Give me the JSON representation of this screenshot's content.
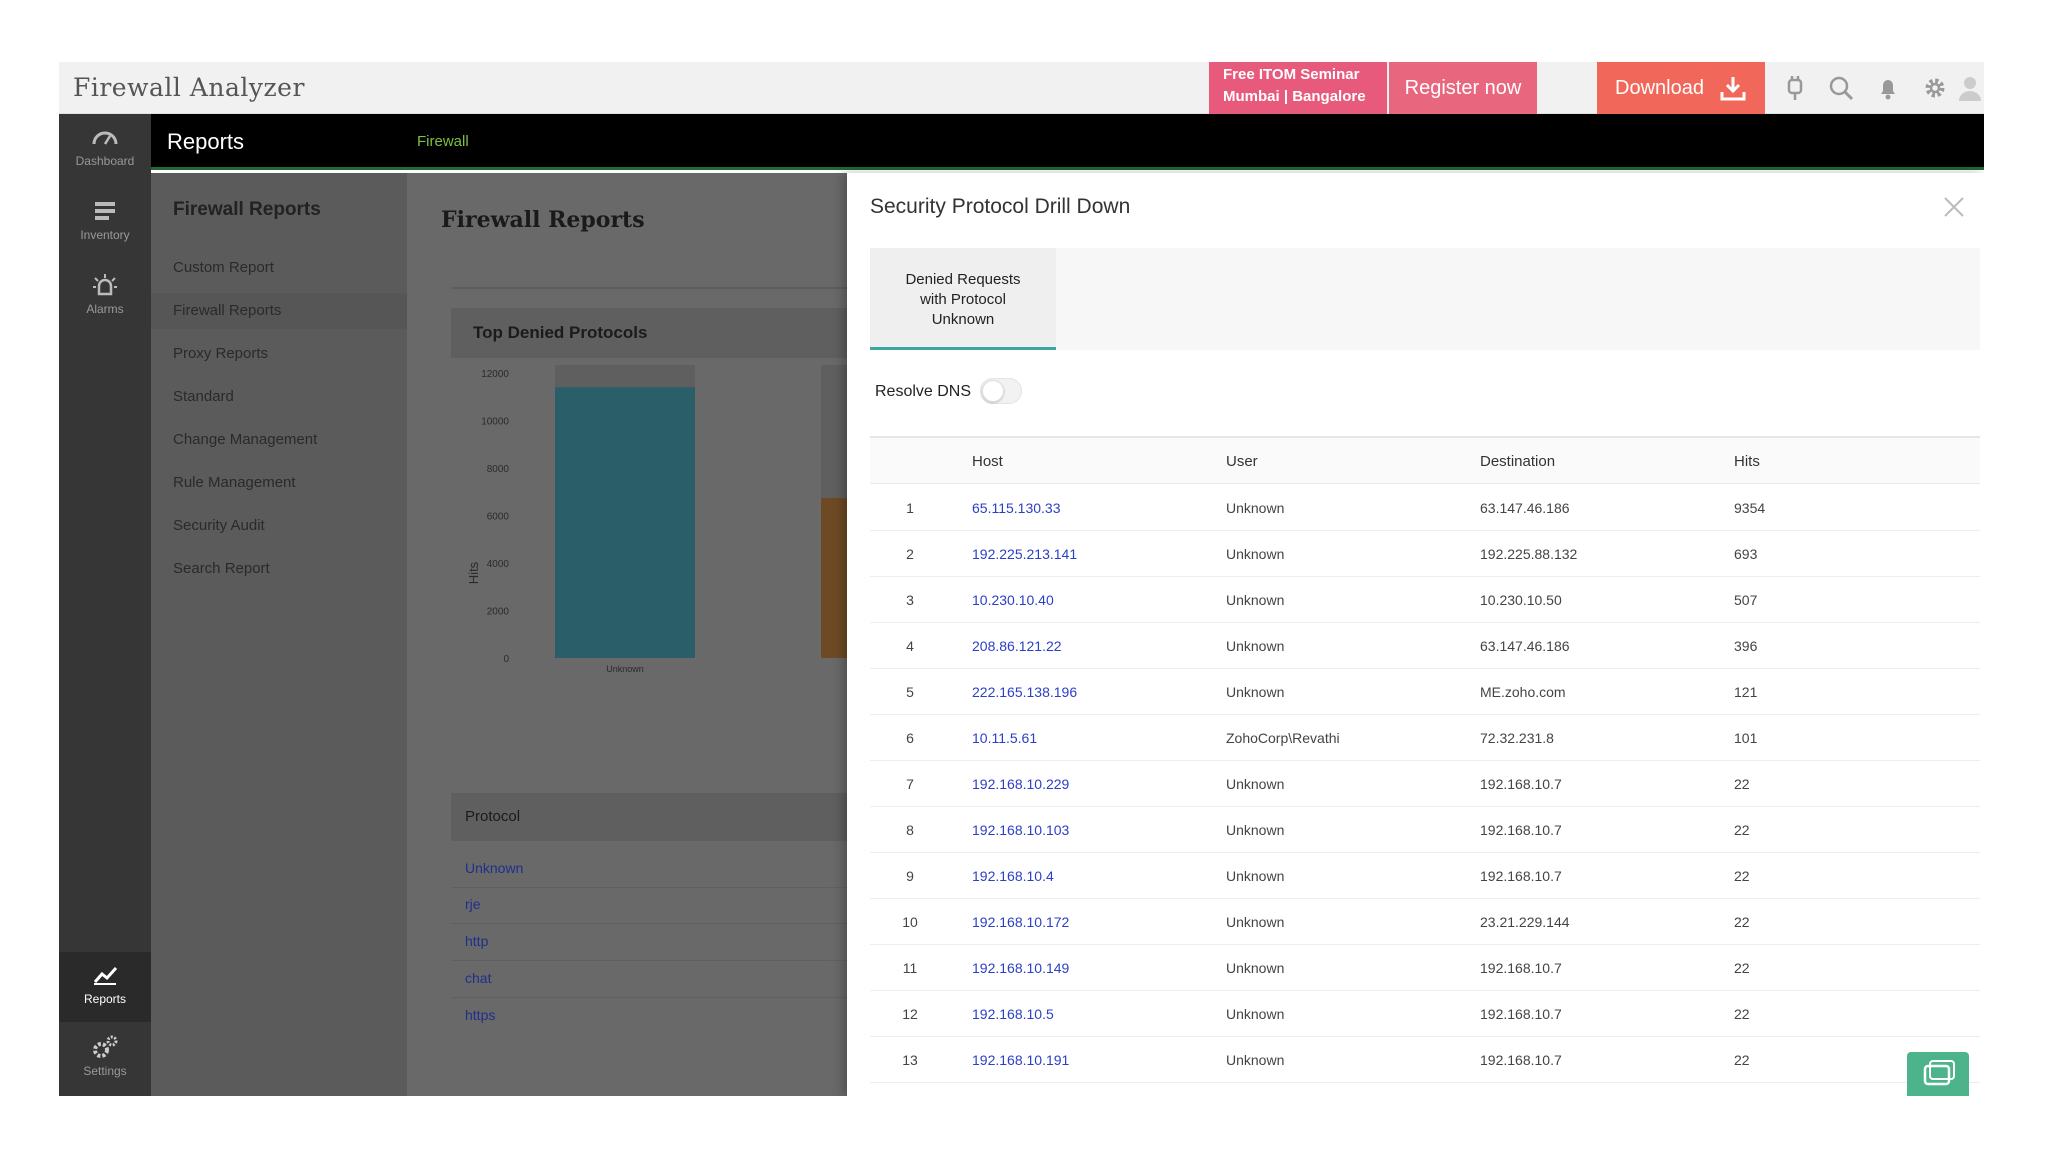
{
  "app": {
    "title": "Firewall Analyzer"
  },
  "topbar": {
    "seminar_line1": "Free ITOM Seminar",
    "seminar_line2": "Mumbai | Bangalore",
    "register_label": "Register now",
    "download_label": "Download",
    "colors": {
      "seminar": "#e85a7c",
      "register": "#e8677f",
      "download": "#f1685a"
    }
  },
  "nav": {
    "items": [
      {
        "label": "Dashboard",
        "icon": "gauge-icon"
      },
      {
        "label": "Inventory",
        "icon": "inventory-icon"
      },
      {
        "label": "Alarms",
        "icon": "alarm-icon"
      },
      {
        "label": "Reports",
        "icon": "reports-chart-icon"
      },
      {
        "label": "Settings",
        "icon": "gears-icon"
      }
    ]
  },
  "header": {
    "title": "Reports",
    "breadcrumb": "Firewall"
  },
  "subnav": {
    "title": "Firewall Reports",
    "items": [
      "Custom Report",
      "Firewall Reports",
      "Proxy Reports",
      "Standard",
      "Change Management",
      "Rule Management",
      "Security Audit",
      "Search Report"
    ]
  },
  "main": {
    "title": "Firewall Reports",
    "panel_title": "Top Denied Protocols",
    "protocol_header": "Protocol",
    "protocols": [
      "Unknown",
      "rje",
      "http",
      "chat",
      "https"
    ]
  },
  "chart_data": {
    "type": "bar",
    "title": "Top Denied Protocols",
    "ylabel": "Hits",
    "xlabel": "",
    "yticks": [
      "0",
      "2000",
      "4000",
      "6000",
      "8000",
      "10000",
      "12000"
    ],
    "ylim": [
      0,
      12000
    ],
    "categories": [
      "Unknown"
    ],
    "values": [
      11400
    ],
    "bar_color": "#3aa8bf",
    "secondary_color": "#f39c34"
  },
  "drawer": {
    "title": "Security Protocol Drill Down",
    "tab_line1": "Denied Requests",
    "tab_line2": "with Protocol",
    "tab_line3": "Unknown",
    "resolve_dns_label": "Resolve DNS",
    "columns": [
      "Host",
      "User",
      "Destination",
      "Hits"
    ],
    "rows": [
      {
        "n": "1",
        "host": "65.115.130.33",
        "user": "Unknown",
        "dest": "63.147.46.186",
        "hits": "9354"
      },
      {
        "n": "2",
        "host": "192.225.213.141",
        "user": "Unknown",
        "dest": "192.225.88.132",
        "hits": "693"
      },
      {
        "n": "3",
        "host": "10.230.10.40",
        "user": "Unknown",
        "dest": "10.230.10.50",
        "hits": "507"
      },
      {
        "n": "4",
        "host": "208.86.121.22",
        "user": "Unknown",
        "dest": "63.147.46.186",
        "hits": "396"
      },
      {
        "n": "5",
        "host": "222.165.138.196",
        "user": "Unknown",
        "dest": "ME.zoho.com",
        "hits": "121"
      },
      {
        "n": "6",
        "host": "10.11.5.61",
        "user": "ZohoCorp\\Revathi",
        "dest": "72.32.231.8",
        "hits": "101"
      },
      {
        "n": "7",
        "host": "192.168.10.229",
        "user": "Unknown",
        "dest": "192.168.10.7",
        "hits": "22"
      },
      {
        "n": "8",
        "host": "192.168.10.103",
        "user": "Unknown",
        "dest": "192.168.10.7",
        "hits": "22"
      },
      {
        "n": "9",
        "host": "192.168.10.4",
        "user": "Unknown",
        "dest": "192.168.10.7",
        "hits": "22"
      },
      {
        "n": "10",
        "host": "192.168.10.172",
        "user": "Unknown",
        "dest": "23.21.229.144",
        "hits": "22"
      },
      {
        "n": "11",
        "host": "192.168.10.149",
        "user": "Unknown",
        "dest": "192.168.10.7",
        "hits": "22"
      },
      {
        "n": "12",
        "host": "192.168.10.5",
        "user": "Unknown",
        "dest": "192.168.10.7",
        "hits": "22"
      },
      {
        "n": "13",
        "host": "192.168.10.191",
        "user": "Unknown",
        "dest": "192.168.10.7",
        "hits": "22"
      }
    ]
  }
}
